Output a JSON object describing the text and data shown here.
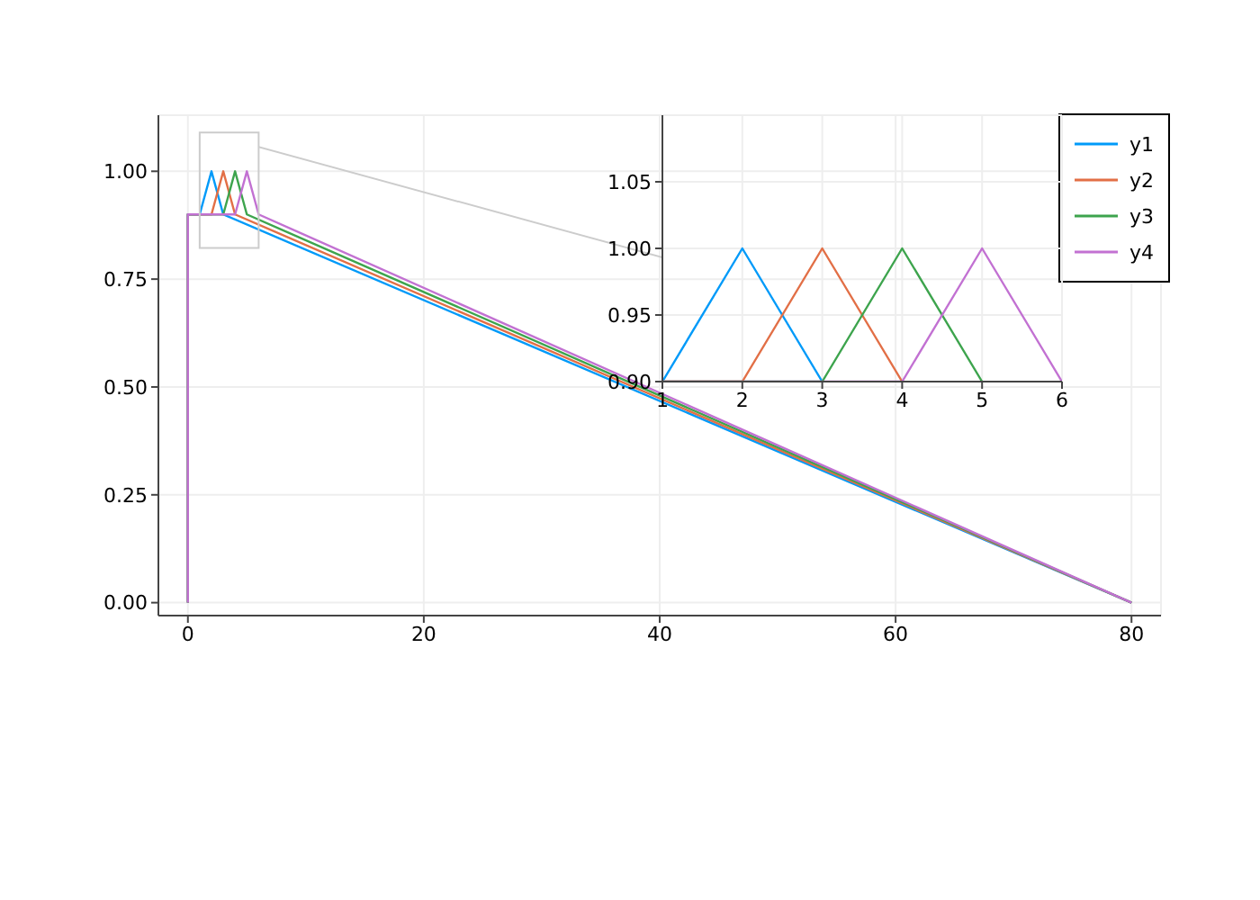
{
  "chart_data": [
    {
      "type": "line",
      "xlim": [
        -2.5,
        82.5
      ],
      "ylim": [
        -0.03,
        1.13
      ],
      "xticks": [
        0,
        20,
        40,
        60,
        80
      ],
      "yticks": [
        {
          "value": 0,
          "label": "0.00"
        },
        {
          "value": 0.25,
          "label": "0.25"
        },
        {
          "value": 0.5,
          "label": "0.50"
        },
        {
          "value": 0.75,
          "label": "0.75"
        },
        {
          "value": 1,
          "label": "1.00"
        }
      ],
      "grid": true,
      "legend": "top right",
      "series": [
        {
          "name": "y1",
          "color": "#009af9",
          "x": [
            0,
            0,
            1,
            2,
            3,
            80
          ],
          "values": [
            0,
            0.9,
            0.9,
            1,
            0.9,
            0
          ]
        },
        {
          "name": "y2",
          "color": "#e26f46",
          "x": [
            0,
            0,
            2,
            3,
            4,
            80
          ],
          "values": [
            0,
            0.9,
            0.9,
            1,
            0.9,
            0
          ]
        },
        {
          "name": "y3",
          "color": "#3da44d",
          "x": [
            0,
            0,
            3,
            4,
            5,
            80
          ],
          "values": [
            0,
            0.9,
            0.9,
            1,
            0.9,
            0
          ]
        },
        {
          "name": "y4",
          "color": "#c271d2",
          "x": [
            0,
            0,
            4,
            5,
            6,
            80
          ],
          "values": [
            0,
            0.9,
            0.9,
            1,
            0.9,
            0
          ]
        }
      ]
    },
    {
      "type": "line",
      "xlim": [
        1,
        6
      ],
      "ylim": [
        0.9,
        1.1
      ],
      "xticks": [
        1,
        2,
        3,
        4,
        5,
        6
      ],
      "yticks": [
        {
          "value": 0.9,
          "label": "0.90"
        },
        {
          "value": 0.95,
          "label": "0.95"
        },
        {
          "value": 1,
          "label": "1.00"
        },
        {
          "value": 1.05,
          "label": "1.05"
        }
      ],
      "grid": true,
      "series": [
        {
          "color": "#009af9",
          "x": [
            1,
            2,
            3
          ],
          "values": [
            0.9,
            1,
            0.9
          ]
        },
        {
          "color": "#e26f46",
          "x": [
            1,
            2,
            3,
            4
          ],
          "values": [
            0.9,
            0.9,
            1,
            0.9
          ]
        },
        {
          "color": "#3da44d",
          "x": [
            1,
            3,
            4,
            5
          ],
          "values": [
            0.9,
            0.9,
            1,
            0.9
          ]
        },
        {
          "color": "#c271d2",
          "x": [
            1,
            4,
            5,
            6
          ],
          "values": [
            0.9,
            0.9,
            1,
            0.9
          ]
        }
      ]
    }
  ]
}
